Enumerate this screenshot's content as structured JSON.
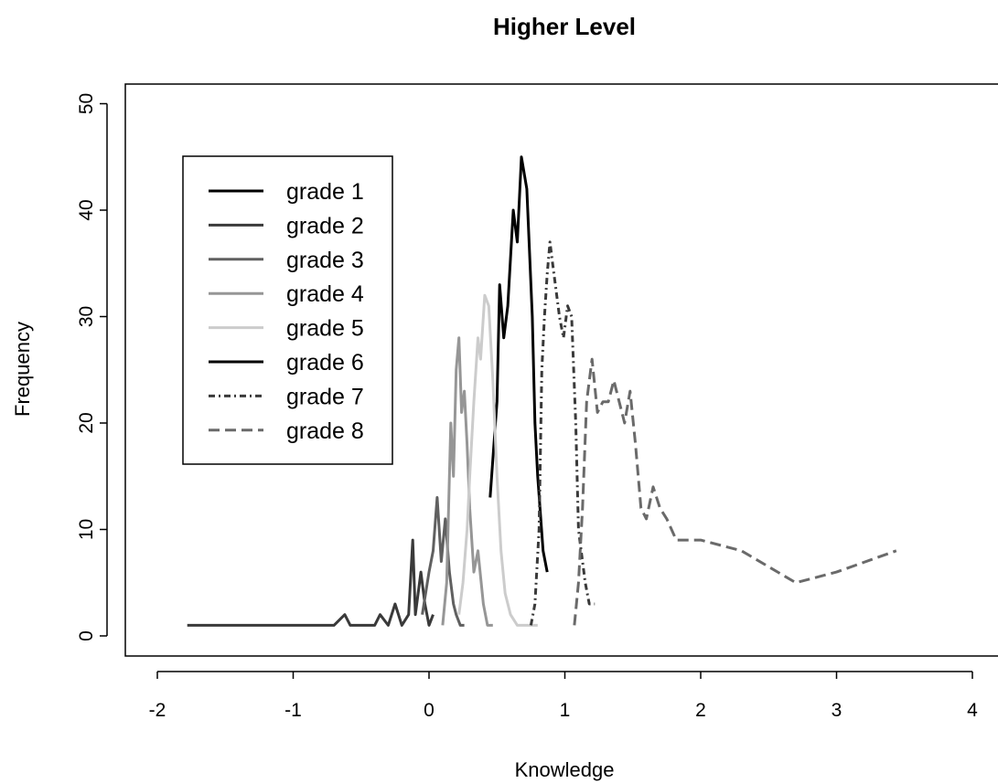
{
  "chart_data": {
    "type": "line",
    "title": "Higher Level",
    "xlabel": "Knowledge",
    "ylabel": "Frequency",
    "xlim": [
      -2.25,
      4.25
    ],
    "ylim": [
      -2,
      52
    ],
    "xticks": [
      -2,
      -1,
      0,
      1,
      2,
      3,
      4
    ],
    "yticks": [
      0,
      10,
      20,
      30,
      40,
      50
    ],
    "legend_position": "top-left",
    "series": [
      {
        "name": "grade 1",
        "color": "#000000",
        "dash": "solid",
        "x": [
          0.45,
          0.5,
          0.52,
          0.55,
          0.58,
          0.62,
          0.65,
          0.68,
          0.72,
          0.76,
          0.78,
          0.8,
          0.84,
          0.87
        ],
        "y": [
          13,
          22,
          33,
          28,
          31,
          40,
          37,
          45,
          42,
          30,
          20,
          15,
          8,
          6
        ]
      },
      {
        "name": "grade 2",
        "color": "#3a3a3a",
        "dash": "solid",
        "x": [
          -1.78,
          -1.6,
          -1.4,
          -1.2,
          -1.0,
          -0.8,
          -0.7,
          -0.62,
          -0.58,
          -0.5,
          -0.4,
          -0.36,
          -0.3,
          -0.25,
          -0.2,
          -0.15,
          -0.12,
          -0.1,
          -0.06,
          -0.03,
          0.0,
          0.03
        ],
        "y": [
          1,
          1,
          1,
          1,
          1,
          1,
          1,
          2,
          1,
          1,
          1,
          2,
          1,
          3,
          1,
          2,
          9,
          2,
          6,
          3,
          1,
          2
        ]
      },
      {
        "name": "grade 3",
        "color": "#606060",
        "dash": "solid",
        "x": [
          -0.05,
          0.0,
          0.03,
          0.06,
          0.09,
          0.12,
          0.15,
          0.18,
          0.2,
          0.23,
          0.26
        ],
        "y": [
          2,
          6,
          8,
          13,
          7,
          11,
          6,
          3,
          2,
          1,
          1
        ]
      },
      {
        "name": "grade 4",
        "color": "#969696",
        "dash": "solid",
        "x": [
          0.1,
          0.13,
          0.16,
          0.18,
          0.2,
          0.22,
          0.24,
          0.26,
          0.28,
          0.3,
          0.33,
          0.36,
          0.4,
          0.43,
          0.47
        ],
        "y": [
          1,
          5,
          20,
          15,
          25,
          28,
          21,
          23,
          18,
          12,
          6,
          8,
          3,
          1,
          1
        ]
      },
      {
        "name": "grade 5",
        "color": "#cccccc",
        "dash": "solid",
        "x": [
          0.22,
          0.25,
          0.28,
          0.3,
          0.33,
          0.36,
          0.38,
          0.41,
          0.44,
          0.47,
          0.5,
          0.53,
          0.56,
          0.6,
          0.65,
          0.7,
          0.8
        ],
        "y": [
          2,
          5,
          10,
          15,
          22,
          28,
          26,
          32,
          31,
          24,
          15,
          8,
          4,
          2,
          1,
          1,
          1
        ]
      },
      {
        "name": "grade 6",
        "color": "#000000",
        "dash": "solid",
        "x": [],
        "y": []
      },
      {
        "name": "grade 7",
        "color": "#3a3a3a",
        "dash": "7,4,2,4",
        "x": [
          0.75,
          0.78,
          0.81,
          0.83,
          0.85,
          0.87,
          0.89,
          0.91,
          0.93,
          0.96,
          0.99,
          1.02,
          1.05,
          1.08,
          1.1,
          1.12,
          1.15,
          1.18,
          1.22
        ],
        "y": [
          1,
          3,
          10,
          25,
          30,
          34,
          37,
          35,
          33,
          30,
          28,
          31,
          30,
          20,
          10,
          8,
          5,
          3,
          3
        ]
      },
      {
        "name": "grade 8",
        "color": "#6a6a6a",
        "dash": "12,6",
        "x": [
          1.07,
          1.1,
          1.13,
          1.16,
          1.2,
          1.24,
          1.28,
          1.32,
          1.36,
          1.4,
          1.44,
          1.48,
          1.52,
          1.56,
          1.6,
          1.65,
          1.7,
          1.75,
          1.82,
          1.9,
          2.0,
          2.3,
          2.7,
          3.0,
          3.44
        ],
        "y": [
          1,
          5,
          12,
          22,
          26,
          21,
          22,
          22,
          24,
          22,
          20,
          23,
          18,
          12,
          11,
          14,
          12,
          11,
          9,
          9,
          9,
          8,
          5,
          6,
          8
        ]
      }
    ]
  }
}
